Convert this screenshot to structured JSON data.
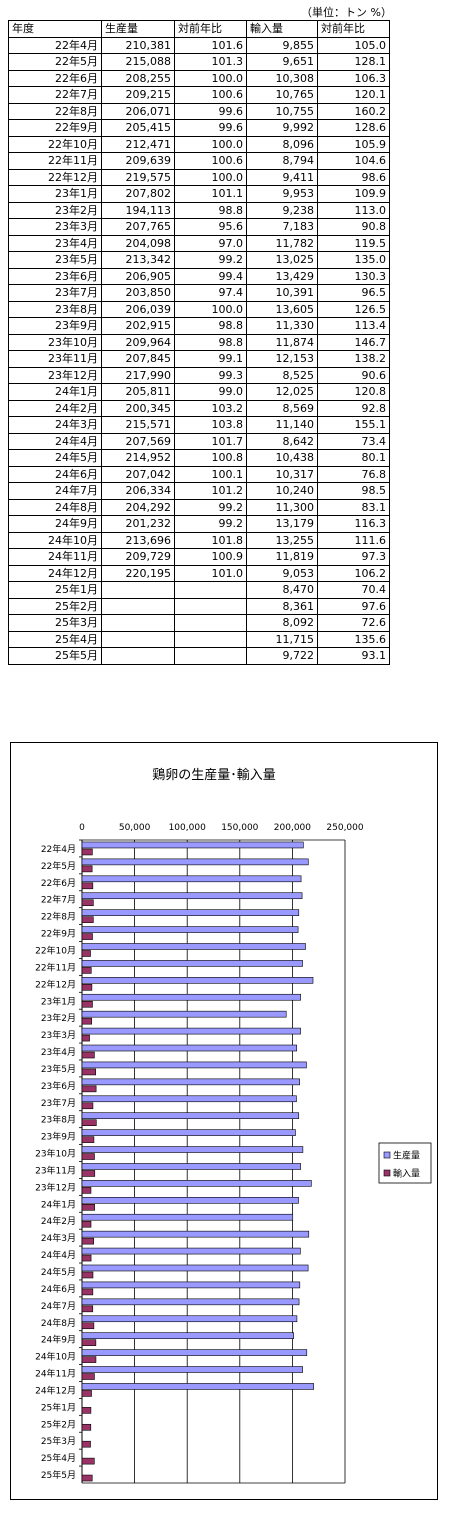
{
  "table": {
    "unit_label": "（単位：トン %）",
    "headers": [
      "年度",
      "生産量",
      "対前年比",
      "輸入量",
      "対前年比"
    ],
    "rows": [
      [
        "22年4月",
        "210,381",
        "101.6",
        "9,855",
        "105.0"
      ],
      [
        "22年5月",
        "215,088",
        "101.3",
        "9,651",
        "128.1"
      ],
      [
        "22年6月",
        "208,255",
        "100.0",
        "10,308",
        "106.3"
      ],
      [
        "22年7月",
        "209,215",
        "100.6",
        "10,765",
        "120.1"
      ],
      [
        "22年8月",
        "206,071",
        "99.6",
        "10,755",
        "160.2"
      ],
      [
        "22年9月",
        "205,415",
        "99.6",
        "9,992",
        "128.6"
      ],
      [
        "22年10月",
        "212,471",
        "100.0",
        "8,096",
        "105.9"
      ],
      [
        "22年11月",
        "209,639",
        "100.6",
        "8,794",
        "104.6"
      ],
      [
        "22年12月",
        "219,575",
        "100.0",
        "9,411",
        "98.6"
      ],
      [
        "23年1月",
        "207,802",
        "101.1",
        "9,953",
        "109.9"
      ],
      [
        "23年2月",
        "194,113",
        "98.8",
        "9,238",
        "113.0"
      ],
      [
        "23年3月",
        "207,765",
        "95.6",
        "7,183",
        "90.8"
      ],
      [
        "23年4月",
        "204,098",
        "97.0",
        "11,782",
        "119.5"
      ],
      [
        "23年5月",
        "213,342",
        "99.2",
        "13,025",
        "135.0"
      ],
      [
        "23年6月",
        "206,905",
        "99.4",
        "13,429",
        "130.3"
      ],
      [
        "23年7月",
        "203,850",
        "97.4",
        "10,391",
        "96.5"
      ],
      [
        "23年8月",
        "206,039",
        "100.0",
        "13,605",
        "126.5"
      ],
      [
        "23年9月",
        "202,915",
        "98.8",
        "11,330",
        "113.4"
      ],
      [
        "23年10月",
        "209,964",
        "98.8",
        "11,874",
        "146.7"
      ],
      [
        "23年11月",
        "207,845",
        "99.1",
        "12,153",
        "138.2"
      ],
      [
        "23年12月",
        "217,990",
        "99.3",
        "8,525",
        "90.6"
      ],
      [
        "24年1月",
        "205,811",
        "99.0",
        "12,025",
        "120.8"
      ],
      [
        "24年2月",
        "200,345",
        "103.2",
        "8,569",
        "92.8"
      ],
      [
        "24年3月",
        "215,571",
        "103.8",
        "11,140",
        "155.1"
      ],
      [
        "24年4月",
        "207,569",
        "101.7",
        "8,642",
        "73.4"
      ],
      [
        "24年5月",
        "214,952",
        "100.8",
        "10,438",
        "80.1"
      ],
      [
        "24年6月",
        "207,042",
        "100.1",
        "10,317",
        "76.8"
      ],
      [
        "24年7月",
        "206,334",
        "101.2",
        "10,240",
        "98.5"
      ],
      [
        "24年8月",
        "204,292",
        "99.2",
        "11,300",
        "83.1"
      ],
      [
        "24年9月",
        "201,232",
        "99.2",
        "13,179",
        "116.3"
      ],
      [
        "24年10月",
        "213,696",
        "101.8",
        "13,255",
        "111.6"
      ],
      [
        "24年11月",
        "209,729",
        "100.9",
        "11,819",
        "97.3"
      ],
      [
        "24年12月",
        "220,195",
        "101.0",
        "9,053",
        "106.2"
      ],
      [
        "25年1月",
        "",
        "",
        "8,470",
        "70.4"
      ],
      [
        "25年2月",
        "",
        "",
        "8,361",
        "97.6"
      ],
      [
        "25年3月",
        "",
        "",
        "8,092",
        "72.6"
      ],
      [
        "25年4月",
        "",
        "",
        "11,715",
        "135.6"
      ],
      [
        "25年5月",
        "",
        "",
        "9,722",
        "93.1"
      ]
    ]
  },
  "chart_data": {
    "type": "bar",
    "orientation": "horizontal",
    "title": "鶏卵の生産量･輸入量",
    "xlabel": "",
    "ylabel": "",
    "xlim": [
      0,
      250000
    ],
    "x_ticks": [
      "0",
      "50,000",
      "100,000",
      "150,000",
      "200,000",
      "250,000"
    ],
    "grid": true,
    "legend_position": "right",
    "categories": [
      "22年4月",
      "22年5月",
      "22年6月",
      "22年7月",
      "22年8月",
      "22年9月",
      "22年10月",
      "22年11月",
      "22年12月",
      "23年1月",
      "23年2月",
      "23年3月",
      "23年4月",
      "23年5月",
      "23年6月",
      "23年7月",
      "23年8月",
      "23年9月",
      "23年10月",
      "23年11月",
      "23年12月",
      "24年1月",
      "24年2月",
      "24年3月",
      "24年4月",
      "24年5月",
      "24年6月",
      "24年7月",
      "24年8月",
      "24年9月",
      "24年10月",
      "24年11月",
      "24年12月",
      "25年1月",
      "25年2月",
      "25年3月",
      "25年4月",
      "25年5月"
    ],
    "series": [
      {
        "name": "生産量",
        "color": "#9999ff",
        "values": [
          210381,
          215088,
          208255,
          209215,
          206071,
          205415,
          212471,
          209639,
          219575,
          207802,
          194113,
          207765,
          204098,
          213342,
          206905,
          203850,
          206039,
          202915,
          209964,
          207845,
          217990,
          205811,
          200345,
          215571,
          207569,
          214952,
          207042,
          206334,
          204292,
          201232,
          213696,
          209729,
          220195,
          null,
          null,
          null,
          null,
          null
        ]
      },
      {
        "name": "輸入量",
        "color": "#993366",
        "values": [
          9855,
          9651,
          10308,
          10765,
          10755,
          9992,
          8096,
          8794,
          9411,
          9953,
          9238,
          7183,
          11782,
          13025,
          13429,
          10391,
          13605,
          11330,
          11874,
          12153,
          8525,
          12025,
          8569,
          11140,
          8642,
          10438,
          10317,
          10240,
          11300,
          13179,
          13255,
          11819,
          9053,
          8470,
          8361,
          8092,
          11715,
          9722
        ]
      }
    ]
  }
}
